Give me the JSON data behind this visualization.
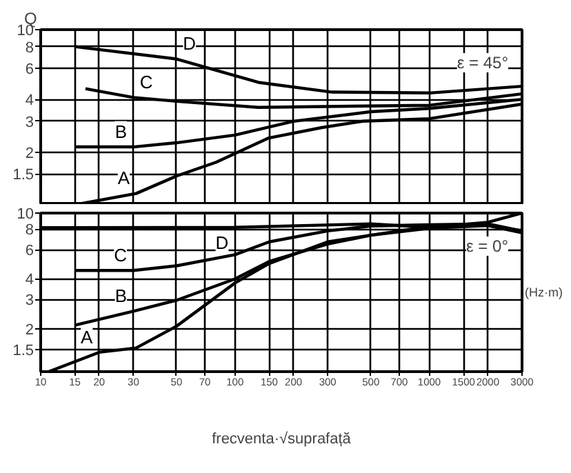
{
  "chart_data": [
    {
      "type": "line",
      "ylabel": "Q",
      "xlim": [
        10,
        3000
      ],
      "xticks": [
        10,
        15,
        20,
        30,
        50,
        70,
        100,
        150,
        200,
        300,
        500,
        700,
        1000,
        1500,
        2000,
        3000
      ],
      "ylim": [
        1,
        10
      ],
      "yticks": [
        1.5,
        2,
        3,
        4,
        6,
        8,
        10
      ],
      "log": "xy",
      "grid": true,
      "tick_labels": "y",
      "line_style": "solid",
      "annotations": [
        "ε = 45°"
      ],
      "series": [
        {
          "name": "D",
          "color": "#000000",
          "x": [
            15,
            50,
            132,
            315,
            1000,
            3000
          ],
          "values": [
            8.0,
            6.8,
            5.0,
            4.4,
            4.35,
            4.75
          ]
        },
        {
          "name": "C",
          "color": "#000000",
          "x": [
            17,
            30,
            50,
            132,
            1000,
            3000
          ],
          "values": [
            4.6,
            4.1,
            3.9,
            3.6,
            3.7,
            4.3
          ]
        },
        {
          "name": "B",
          "color": "#000000",
          "x": [
            15,
            30,
            50,
            100,
            200,
            500,
            1000,
            3000
          ],
          "values": [
            2.14,
            2.14,
            2.26,
            2.5,
            3.0,
            3.4,
            3.55,
            4.0
          ]
        },
        {
          "name": "A",
          "color": "#000000",
          "x": [
            15,
            31,
            50,
            80,
            148,
            280,
            455,
            1000,
            3000
          ],
          "values": [
            1.0,
            1.16,
            1.46,
            1.75,
            2.4,
            2.76,
            3.0,
            3.1,
            3.76
          ]
        }
      ]
    },
    {
      "type": "line",
      "xlabel": "frecventa·√suprafață",
      "xlim": [
        10,
        3000
      ],
      "xticks": [
        10,
        15,
        20,
        30,
        50,
        70,
        100,
        150,
        200,
        300,
        500,
        700,
        1000,
        1500,
        2000,
        3000
      ],
      "ylim": [
        1.1,
        10
      ],
      "yticks": [
        1.5,
        2,
        3,
        4,
        6,
        8,
        10
      ],
      "log": "xy",
      "grid": true,
      "line_style": "solid",
      "annotations": [
        "ε = 0°",
        "(Hz·m)"
      ],
      "series": [
        {
          "name": "D",
          "color": "#000000",
          "x": [
            10,
            100,
            500,
            1000,
            2000,
            3000
          ],
          "values": [
            8.15,
            8.2,
            8.6,
            8.2,
            8.8,
            10
          ]
        },
        {
          "name": "C",
          "color": "#000000",
          "x": [
            15,
            30,
            50,
            100,
            150,
            300,
            500,
            1000,
            2000,
            3000
          ],
          "values": [
            4.5,
            4.5,
            4.8,
            5.6,
            6.7,
            7.8,
            8.35,
            8.5,
            8.6,
            7.8
          ]
        },
        {
          "name": "B",
          "color": "#000000",
          "x": [
            15,
            30,
            50,
            100,
            150,
            300,
            500,
            1000,
            2000,
            3000
          ],
          "values": [
            2.1,
            2.55,
            2.97,
            4.0,
            5.1,
            6.5,
            7.35,
            8.3,
            8.5,
            7.8
          ]
        },
        {
          "name": "A",
          "color": "#000000",
          "x": [
            11,
            20,
            31,
            50,
            100,
            150,
            300,
            500,
            1000,
            2000,
            3000
          ],
          "values": [
            1.1,
            1.44,
            1.53,
            2.07,
            3.78,
            4.96,
            6.7,
            7.35,
            8.1,
            8.4,
            7.6
          ]
        }
      ]
    }
  ]
}
